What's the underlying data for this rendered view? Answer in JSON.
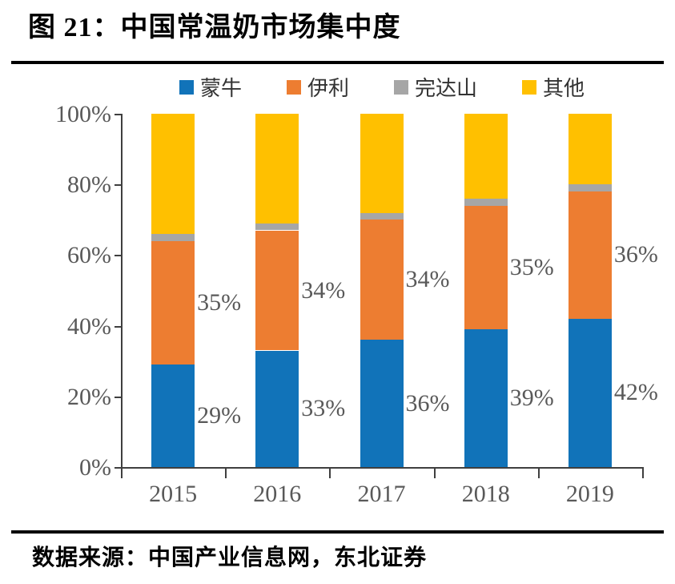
{
  "figure": {
    "title": "图 21：中国常温奶市场集中度",
    "source": "数据来源：中国产业信息网，东北证券"
  },
  "chart_data": {
    "type": "bar",
    "subtype": "stacked-100-percent",
    "title": "中国常温奶市场集中度",
    "categories": [
      "2015",
      "2016",
      "2017",
      "2018",
      "2019"
    ],
    "series": [
      {
        "name": "蒙牛",
        "color": "#1173B9",
        "values": [
          29,
          33,
          36,
          39,
          42
        ],
        "data_labels": [
          "29%",
          "33%",
          "36%",
          "39%",
          "42%"
        ]
      },
      {
        "name": "伊利",
        "color": "#ED7D31",
        "values": [
          35,
          34,
          34,
          35,
          36
        ],
        "data_labels": [
          "35%",
          "34%",
          "34%",
          "35%",
          "36%"
        ]
      },
      {
        "name": "完达山",
        "color": "#A6A6A6",
        "values": [
          2,
          2,
          2,
          2,
          2
        ],
        "data_labels": null
      },
      {
        "name": "其他",
        "color": "#FFC000",
        "values": [
          34,
          31,
          28,
          24,
          20
        ],
        "data_labels": null
      }
    ],
    "y_axis": {
      "tick_labels": [
        "0%",
        "20%",
        "40%",
        "60%",
        "80%",
        "100%"
      ],
      "min": 0,
      "max": 100,
      "grid": false
    },
    "legend": {
      "position": "top",
      "entries": [
        "蒙牛",
        "伊利",
        "完达山",
        "其他"
      ]
    },
    "colors": {
      "label_text": "#595959",
      "axis_line": "#3F3F3F"
    }
  }
}
